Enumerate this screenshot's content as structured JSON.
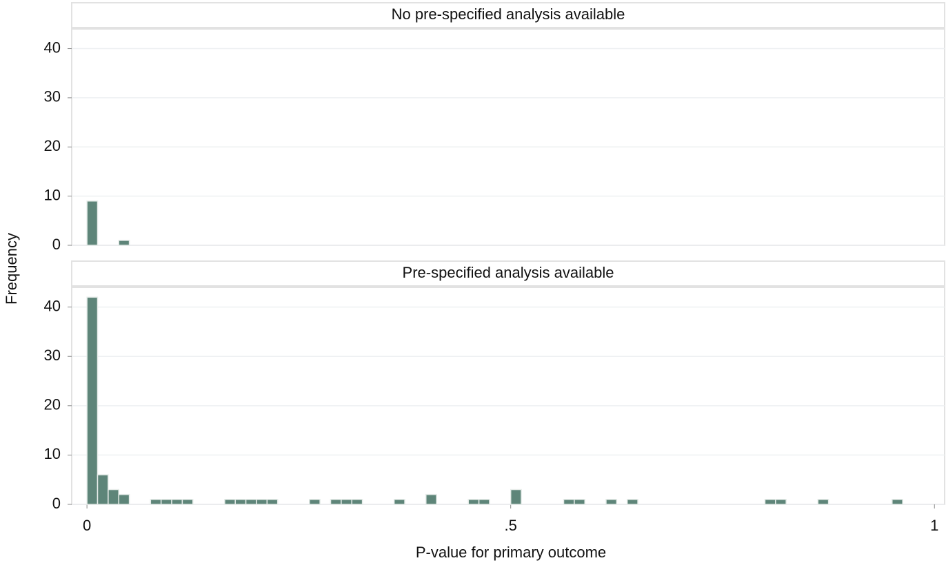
{
  "chart_data": [
    {
      "type": "histogram",
      "title": "No pre-specified analysis available",
      "color": "#5e8579",
      "bins": [
        0,
        0.0125,
        0.025,
        0.0375,
        0.05,
        0.0625,
        0.075,
        0.0875,
        0.1,
        0.1125,
        0.125,
        0.1375,
        0.15,
        0.1625,
        0.175,
        0.1875,
        0.2,
        0.2125,
        0.225,
        0.2375,
        0.25,
        0.2625,
        0.275,
        0.2875,
        0.3,
        0.3125,
        0.325,
        0.3375,
        0.35,
        0.3625,
        0.375,
        0.3875,
        0.4,
        0.4125,
        0.425,
        0.4375,
        0.45,
        0.4625,
        0.475,
        0.4875,
        0.5,
        0.5125,
        0.525,
        0.5375,
        0.55,
        0.5625,
        0.575,
        0.5875,
        0.6,
        0.6125,
        0.625,
        0.6375,
        0.65,
        0.6625,
        0.675,
        0.6875,
        0.7,
        0.7125,
        0.725,
        0.7375,
        0.75,
        0.7625,
        0.775,
        0.7875,
        0.8,
        0.8125,
        0.825,
        0.8375,
        0.85,
        0.8625,
        0.875,
        0.8875,
        0.9,
        0.9125,
        0.925,
        0.9375,
        0.95,
        0.9625,
        0.975,
        0.9875,
        1
      ],
      "values": [
        9,
        0,
        0,
        1,
        0,
        0,
        0,
        0,
        0,
        0,
        0,
        0,
        0,
        0,
        0,
        0,
        0,
        0,
        0,
        0,
        0,
        0,
        0,
        0,
        0,
        0,
        0,
        0,
        0,
        0,
        0,
        0,
        0,
        0,
        0,
        0,
        0,
        0,
        0,
        0,
        0,
        0,
        0,
        0,
        0,
        0,
        0,
        0,
        0,
        0,
        0,
        0,
        0,
        0,
        0,
        0,
        0,
        0,
        0,
        0,
        0,
        0,
        0,
        0,
        0,
        0,
        0,
        0,
        0,
        0,
        0,
        0,
        0,
        0,
        0,
        0,
        0,
        0,
        0,
        0
      ],
      "xlim": [
        -0.018,
        1.012
      ],
      "ylim": [
        0,
        44
      ],
      "yticks": [
        0,
        10,
        20,
        30,
        40
      ],
      "grid": true
    },
    {
      "type": "histogram",
      "title": "Pre-specified analysis available",
      "color": "#5e8579",
      "bins": [
        0,
        0.0125,
        0.025,
        0.0375,
        0.05,
        0.0625,
        0.075,
        0.0875,
        0.1,
        0.1125,
        0.125,
        0.1375,
        0.15,
        0.1625,
        0.175,
        0.1875,
        0.2,
        0.2125,
        0.225,
        0.2375,
        0.25,
        0.2625,
        0.275,
        0.2875,
        0.3,
        0.3125,
        0.325,
        0.3375,
        0.35,
        0.3625,
        0.375,
        0.3875,
        0.4,
        0.4125,
        0.425,
        0.4375,
        0.45,
        0.4625,
        0.475,
        0.4875,
        0.5,
        0.5125,
        0.525,
        0.5375,
        0.55,
        0.5625,
        0.575,
        0.5875,
        0.6,
        0.6125,
        0.625,
        0.6375,
        0.65,
        0.6625,
        0.675,
        0.6875,
        0.7,
        0.7125,
        0.725,
        0.7375,
        0.75,
        0.7625,
        0.775,
        0.7875,
        0.8,
        0.8125,
        0.825,
        0.8375,
        0.85,
        0.8625,
        0.875,
        0.8875,
        0.9,
        0.9125,
        0.925,
        0.9375,
        0.95,
        0.9625,
        0.975,
        0.9875,
        1
      ],
      "values": [
        42,
        6,
        3,
        2,
        0,
        0,
        1,
        1,
        1,
        1,
        0,
        0,
        0,
        1,
        1,
        1,
        1,
        1,
        0,
        0,
        0,
        1,
        0,
        1,
        1,
        1,
        0,
        0,
        0,
        1,
        0,
        0,
        2,
        0,
        0,
        0,
        1,
        1,
        0,
        0,
        3,
        0,
        0,
        0,
        0,
        1,
        1,
        0,
        0,
        1,
        0,
        1,
        0,
        0,
        0,
        0,
        0,
        0,
        0,
        0,
        0,
        0,
        0,
        0,
        1,
        1,
        0,
        0,
        0,
        1,
        0,
        0,
        0,
        0,
        0,
        0,
        1,
        0,
        0,
        0
      ],
      "xlim": [
        -0.018,
        1.012
      ],
      "ylim": [
        0,
        44
      ],
      "yticks": [
        0,
        10,
        20,
        30,
        40
      ],
      "xticks": [
        0,
        {
          "value": 0.5,
          "label": ".5"
        },
        1
      ],
      "grid": true
    }
  ],
  "axis_labels": {
    "x": "P-value for primary outcome",
    "y": "Frequency"
  }
}
